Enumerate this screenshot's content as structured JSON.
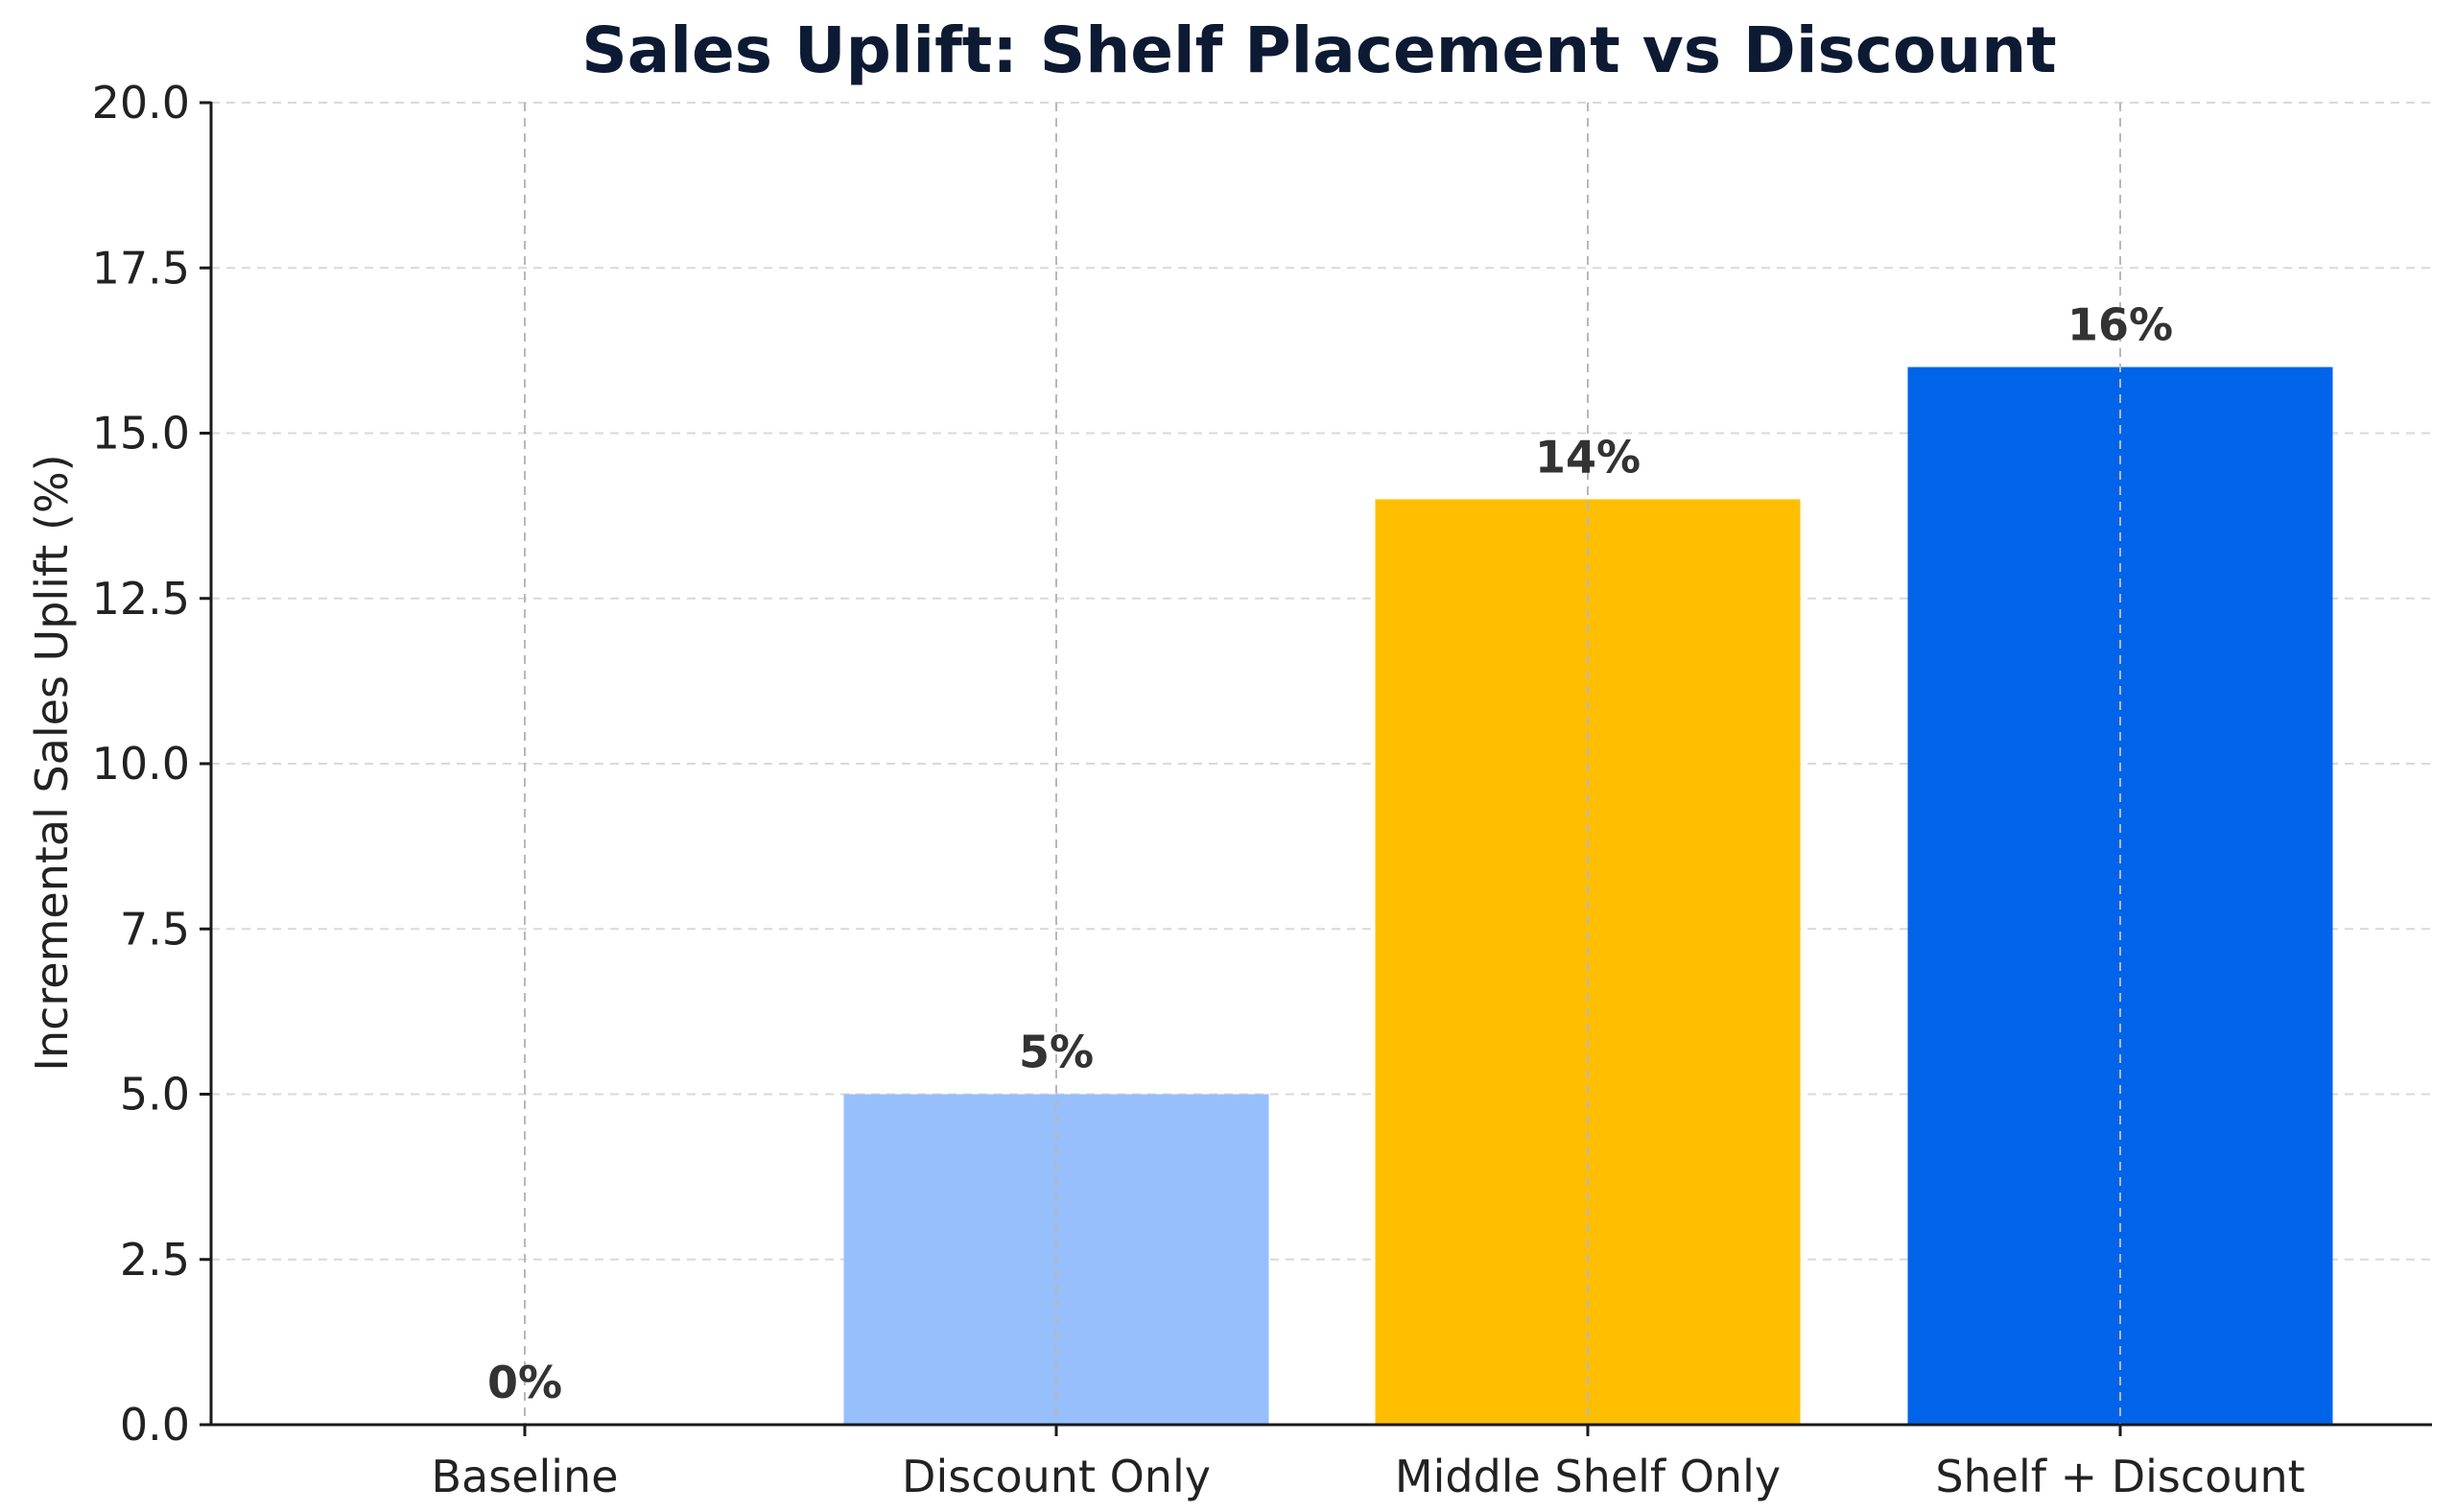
{
  "chart_data": {
    "type": "bar",
    "title": "Sales Uplift: Shelf Placement vs Discount",
    "xlabel": "",
    "ylabel": "Incremental Sales Uplift (%)",
    "categories": [
      "Baseline",
      "Discount Only",
      "Middle Shelf Only",
      "Shelf + Discount"
    ],
    "values": [
      0,
      5,
      14,
      16
    ],
    "data_labels": [
      "0%",
      "5%",
      "14%",
      "16%"
    ],
    "colors": [
      "#f2f2f2",
      "#96bffb",
      "#ffbf00",
      "#0064eb"
    ],
    "ylim": [
      0,
      20
    ],
    "yticks": [
      0,
      2.5,
      5,
      7.5,
      10,
      12.5,
      15,
      17.5,
      20
    ],
    "ytick_labels": [
      "0.0",
      "2.5",
      "5.0",
      "7.5",
      "10.0",
      "12.5",
      "15.0",
      "17.5",
      "20.0"
    ],
    "grid": true
  }
}
